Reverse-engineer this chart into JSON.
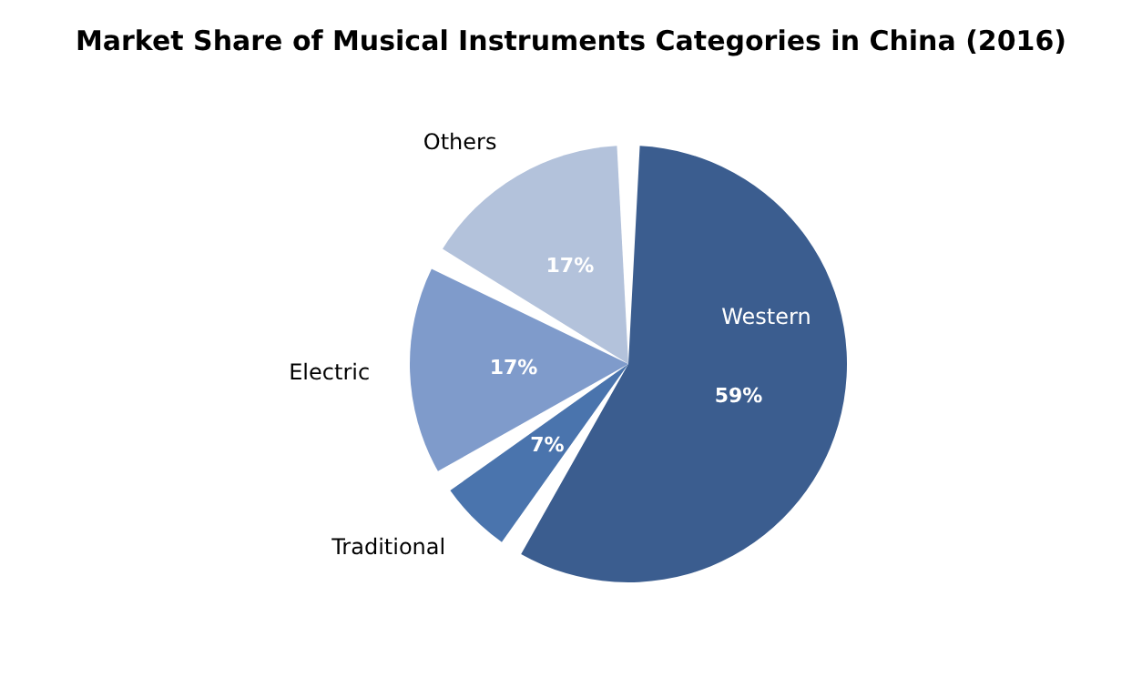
{
  "chart_data": {
    "type": "pie",
    "title": "Market Share of Musical Instruments Categories in China (2016)",
    "categories": [
      "Western",
      "Traditional",
      "Electric",
      "Others"
    ],
    "values": [
      59,
      7,
      17,
      17
    ],
    "value_labels": [
      "59%",
      "7%",
      "17%",
      "17%"
    ],
    "colors": [
      "#3b5d8f",
      "#4a74ad",
      "#7f9bcb",
      "#b3c2db"
    ],
    "legend": false
  }
}
